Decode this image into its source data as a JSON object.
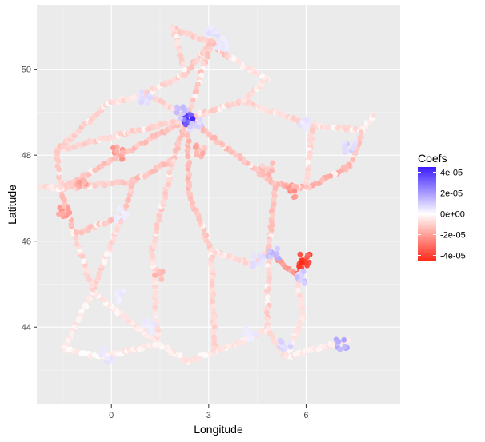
{
  "chart_data": {
    "type": "scatter",
    "title": "",
    "xlabel": "Longitude",
    "ylabel": "Latitude",
    "xlim": [
      -2.3,
      8.9
    ],
    "ylim": [
      42.2,
      51.5
    ],
    "x_ticks": [
      0,
      3,
      6
    ],
    "x_tick_labels": [
      "0",
      "3",
      "6"
    ],
    "y_ticks": [
      44,
      46,
      48,
      50
    ],
    "y_tick_labels": [
      "44",
      "46",
      "48",
      "50"
    ],
    "grid": true,
    "legend": {
      "title": "Coefs",
      "position": "right",
      "type": "colorbar",
      "range": [
        -4.5e-05,
        4.5e-05
      ],
      "breaks": [
        4e-05,
        2e-05,
        0,
        -2e-05,
        -4e-05
      ],
      "labels": [
        "4e-05",
        "2e-05",
        "0e+00",
        "-2e-05",
        "-4e-05"
      ],
      "low_color": "#ff2a1a",
      "mid_color": "#ffffff",
      "high_color": "#3b1cff"
    },
    "routes": [
      {
        "from": [
          -1.55,
          47.22
        ],
        "to": [
          2.35,
          48.86
        ],
        "coef": -1.3e-05
      },
      {
        "from": [
          -1.68,
          48.11
        ],
        "to": [
          2.35,
          48.86
        ],
        "coef": -9e-06
      },
      {
        "from": [
          -1.55,
          47.22
        ],
        "to": [
          -1.68,
          48.11
        ],
        "coef": -1.1e-05
      },
      {
        "from": [
          -1.68,
          48.11
        ],
        "to": [
          -0.1,
          49.2
        ],
        "coef": -1e-05
      },
      {
        "from": [
          -0.1,
          49.2
        ],
        "to": [
          1.1,
          49.45
        ],
        "coef": -7e-06
      },
      {
        "from": [
          1.1,
          49.45
        ],
        "to": [
          2.35,
          48.86
        ],
        "coef": -8e-06
      },
      {
        "from": [
          1.1,
          49.45
        ],
        "to": [
          2.3,
          49.9
        ],
        "coef": -9e-06
      },
      {
        "from": [
          2.3,
          49.9
        ],
        "to": [
          3.06,
          50.63
        ],
        "coef": -1.2e-05
      },
      {
        "from": [
          1.9,
          50.95
        ],
        "to": [
          3.06,
          50.63
        ],
        "coef": -1e-05
      },
      {
        "from": [
          1.9,
          50.95
        ],
        "to": [
          2.3,
          49.9
        ],
        "coef": -8e-06
      },
      {
        "from": [
          3.06,
          50.63
        ],
        "to": [
          3.6,
          50.3
        ],
        "coef": -1.4e-05
      },
      {
        "from": [
          3.06,
          50.63
        ],
        "to": [
          2.35,
          48.86
        ],
        "coef": -1.1e-05
      },
      {
        "from": [
          2.35,
          48.86
        ],
        "to": [
          4.03,
          49.26
        ],
        "coef": -9e-06
      },
      {
        "from": [
          4.03,
          49.26
        ],
        "to": [
          6.18,
          48.69
        ],
        "coef": -8e-06
      },
      {
        "from": [
          6.18,
          48.69
        ],
        "to": [
          7.75,
          48.58
        ],
        "coef": -7e-06
      },
      {
        "from": [
          7.75,
          48.58
        ],
        "to": [
          8.1,
          48.95
        ],
        "coef": -5e-06
      },
      {
        "from": [
          7.75,
          48.58
        ],
        "to": [
          7.35,
          47.75
        ],
        "coef": -1.2e-05
      },
      {
        "from": [
          7.35,
          47.75
        ],
        "to": [
          6.02,
          47.24
        ],
        "coef": -1.6e-05
      },
      {
        "from": [
          6.02,
          47.24
        ],
        "to": [
          5.04,
          47.32
        ],
        "coef": -1.5e-05
      },
      {
        "from": [
          5.04,
          47.32
        ],
        "to": [
          2.35,
          48.86
        ],
        "coef": -1.3e-05
      },
      {
        "from": [
          5.04,
          47.32
        ],
        "to": [
          4.85,
          45.76
        ],
        "coef": -1.2e-05
      },
      {
        "from": [
          4.85,
          45.76
        ],
        "to": [
          5.72,
          45.19
        ],
        "coef": -1.9e-05
      },
      {
        "from": [
          5.72,
          45.19
        ],
        "to": [
          6.1,
          45.7
        ],
        "coef": -3.5e-05
      },
      {
        "from": [
          4.85,
          45.76
        ],
        "to": [
          4.39,
          45.44
        ],
        "coef": -9e-06
      },
      {
        "from": [
          4.39,
          45.44
        ],
        "to": [
          3.08,
          45.78
        ],
        "coef": -7e-06
      },
      {
        "from": [
          4.85,
          45.76
        ],
        "to": [
          4.8,
          43.95
        ],
        "coef": -1e-05
      },
      {
        "from": [
          4.8,
          43.95
        ],
        "to": [
          5.37,
          43.3
        ],
        "coef": -8e-06
      },
      {
        "from": [
          5.37,
          43.3
        ],
        "to": [
          7.27,
          43.7
        ],
        "coef": -5e-06
      },
      {
        "from": [
          4.8,
          43.95
        ],
        "to": [
          3.88,
          43.61
        ],
        "coef": -6e-06
      },
      {
        "from": [
          3.88,
          43.61
        ],
        "to": [
          2.35,
          43.2
        ],
        "coef": -5e-06
      },
      {
        "from": [
          2.35,
          43.2
        ],
        "to": [
          1.44,
          43.6
        ],
        "coef": -4e-06
      },
      {
        "from": [
          1.44,
          43.6
        ],
        "to": [
          -0.57,
          44.84
        ],
        "coef": -5e-06
      },
      {
        "from": [
          -0.57,
          44.84
        ],
        "to": [
          0.34,
          46.58
        ],
        "coef": -9e-06
      },
      {
        "from": [
          0.34,
          46.58
        ],
        "to": [
          0.69,
          47.39
        ],
        "coef": -1.1e-05
      },
      {
        "from": [
          0.69,
          47.39
        ],
        "to": [
          1.91,
          47.9
        ],
        "coef": -1.3e-05
      },
      {
        "from": [
          1.91,
          47.9
        ],
        "to": [
          2.35,
          48.86
        ],
        "coef": -1.2e-05
      },
      {
        "from": [
          0.69,
          47.39
        ],
        "to": [
          -1.55,
          47.22
        ],
        "coef": -1.1e-05
      },
      {
        "from": [
          1.44,
          43.6
        ],
        "to": [
          1.26,
          45.83
        ],
        "coef": -7e-06
      },
      {
        "from": [
          1.26,
          45.83
        ],
        "to": [
          1.91,
          47.9
        ],
        "coef": -1e-05
      },
      {
        "from": [
          3.08,
          45.78
        ],
        "to": [
          2.4,
          47.08
        ],
        "coef": -1.2e-05
      },
      {
        "from": [
          2.4,
          47.08
        ],
        "to": [
          2.35,
          48.86
        ],
        "coef": -1.4e-05
      },
      {
        "from": [
          3.08,
          45.78
        ],
        "to": [
          3.2,
          43.5
        ],
        "coef": -8e-06
      },
      {
        "from": [
          -0.57,
          44.84
        ],
        "to": [
          -1.47,
          43.49
        ],
        "coef": -4e-06
      },
      {
        "from": [
          -1.47,
          43.49
        ],
        "to": [
          -0.37,
          43.3
        ],
        "coef": -3e-06
      },
      {
        "from": [
          -0.37,
          43.3
        ],
        "to": [
          1.44,
          43.6
        ],
        "coef": -4e-06
      },
      {
        "from": [
          -0.57,
          44.84
        ],
        "to": [
          -1.15,
          46.16
        ],
        "coef": -8e-06
      },
      {
        "from": [
          -1.15,
          46.16
        ],
        "to": [
          -1.55,
          47.22
        ],
        "coef": -1.4e-05
      },
      {
        "from": [
          -1.15,
          46.16
        ],
        "to": [
          0.34,
          46.58
        ],
        "coef": -1.2e-05
      },
      {
        "from": [
          -2.2,
          47.28
        ],
        "to": [
          -1.55,
          47.22
        ],
        "coef": -6e-06
      },
      {
        "from": [
          4.03,
          49.26
        ],
        "to": [
          4.8,
          49.77
        ],
        "coef": -6e-06
      },
      {
        "from": [
          4.8,
          49.77
        ],
        "to": [
          3.6,
          50.3
        ],
        "coef": -6e-06
      },
      {
        "from": [
          6.18,
          48.69
        ],
        "to": [
          6.02,
          47.24
        ],
        "coef": -1e-05
      },
      {
        "from": [
          5.72,
          45.19
        ],
        "to": [
          5.9,
          44.2
        ],
        "coef": -6e-06
      },
      {
        "from": [
          5.9,
          44.2
        ],
        "to": [
          5.37,
          43.3
        ],
        "coef": -4e-06
      }
    ],
    "positive_clusters": [
      {
        "x": 2.38,
        "y": 48.85,
        "coef": 4.2e-05
      },
      {
        "x": 2.15,
        "y": 49.0,
        "coef": 1.5e-05
      },
      {
        "x": 2.6,
        "y": 48.7,
        "coef": 1e-05
      },
      {
        "x": 3.1,
        "y": 50.85,
        "coef": 7e-06
      },
      {
        "x": 3.4,
        "y": 50.6,
        "coef": 5e-06
      },
      {
        "x": 1.05,
        "y": 49.35,
        "coef": 8e-06
      },
      {
        "x": 5.95,
        "y": 48.7,
        "coef": 6e-06
      },
      {
        "x": 7.35,
        "y": 48.2,
        "coef": 1e-05
      },
      {
        "x": 4.98,
        "y": 45.72,
        "coef": 1.6e-05
      },
      {
        "x": 4.5,
        "y": 45.55,
        "coef": 8e-06
      },
      {
        "x": 5.8,
        "y": 45.15,
        "coef": 1.2e-05
      },
      {
        "x": 7.1,
        "y": 43.58,
        "coef": 1.9e-05
      },
      {
        "x": 5.35,
        "y": 43.55,
        "coef": 9e-06
      },
      {
        "x": 4.3,
        "y": 43.85,
        "coef": 5e-06
      },
      {
        "x": -0.15,
        "y": 43.35,
        "coef": 6e-06
      },
      {
        "x": 0.35,
        "y": 44.7,
        "coef": 5e-06
      },
      {
        "x": 1.2,
        "y": 44.0,
        "coef": 6e-06
      },
      {
        "x": 0.3,
        "y": 46.6,
        "coef": 4e-06
      }
    ],
    "negative_clusters": [
      {
        "x": 5.95,
        "y": 45.55,
        "coef": -4.6e-05
      },
      {
        "x": 5.55,
        "y": 47.15,
        "coef": -2.6e-05
      },
      {
        "x": 0.2,
        "y": 48.05,
        "coef": -2.2e-05
      },
      {
        "x": 2.75,
        "y": 48.1,
        "coef": -1.9e-05
      },
      {
        "x": -1.45,
        "y": 46.7,
        "coef": -2.3e-05
      },
      {
        "x": -0.9,
        "y": 47.4,
        "coef": -2e-05
      },
      {
        "x": 1.5,
        "y": 45.2,
        "coef": -1.6e-05
      },
      {
        "x": 4.8,
        "y": 47.7,
        "coef": -1.6e-05
      }
    ]
  }
}
